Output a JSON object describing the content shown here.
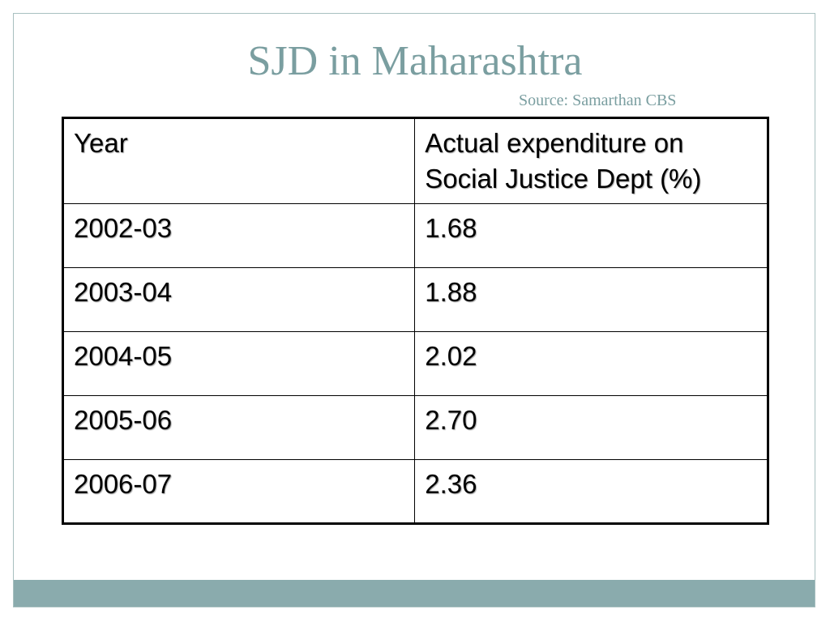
{
  "slide": {
    "title": "SJD in Maharashtra",
    "source": "Source: Samarthan CBS"
  },
  "table": {
    "headers": {
      "year": "Year",
      "value": "Actual expenditure on Social Justice Dept (%)"
    },
    "rows": [
      {
        "year": "2002-03",
        "value": "1.68"
      },
      {
        "year": "2003-04",
        "value": "1.88"
      },
      {
        "year": "2004-05",
        "value": "2.02"
      },
      {
        "year": "2005-06",
        "value": "2.70"
      },
      {
        "year": "2006-07",
        "value": "2.36"
      }
    ]
  },
  "colors": {
    "title": "#7a9ea0",
    "accent_bar": "#8aabad",
    "frame_border": "#a8c0c0"
  }
}
